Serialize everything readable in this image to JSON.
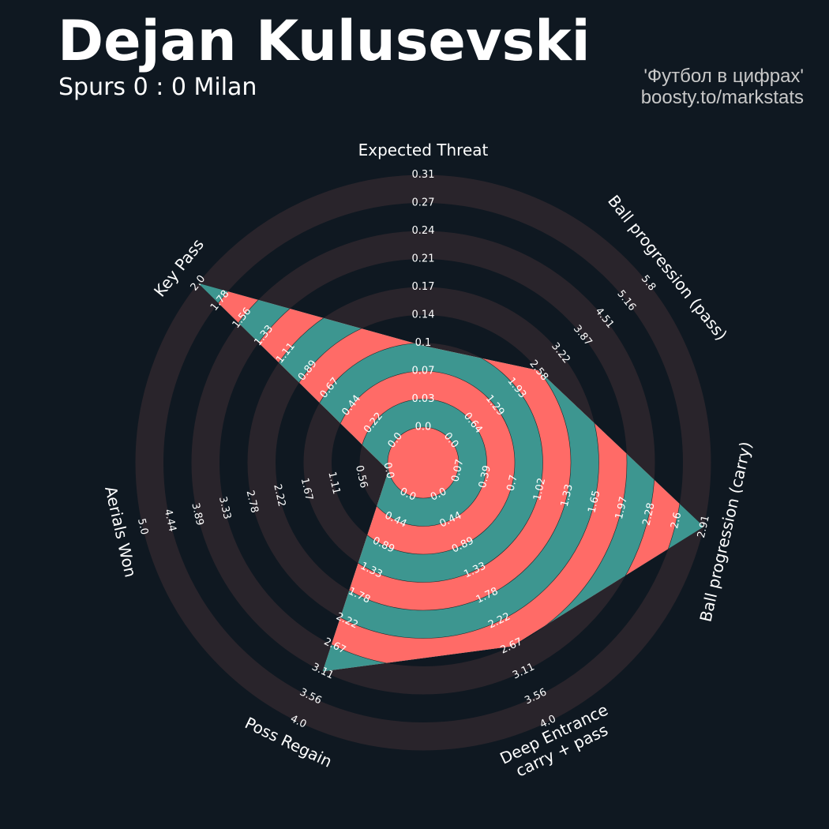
{
  "header": {
    "title": "Dejan Kulusevski",
    "subtitle": "Spurs 0 : 0 Milan",
    "credit_line1": "'Футбол в цифрах'",
    "credit_line2": "boosty.to/markstats"
  },
  "colors": {
    "background": "#0f1821",
    "rings": "#29242b",
    "stripe_a": "#ff6b67",
    "stripe_b": "#3d9690",
    "text": "#ffffff",
    "credit": "#c8c8c8"
  },
  "chart_data": {
    "type": "radar",
    "parameters": [
      {
        "name": [
          "Expected Threat"
        ],
        "ticks": [
          "0.0",
          "0.03",
          "0.07",
          "0.1",
          "0.14",
          "0.17",
          "0.21",
          "0.24",
          "0.27",
          "0.31"
        ],
        "value": 0.1
      },
      {
        "name": [
          "Ball progression (pass)"
        ],
        "ticks": [
          "0.0",
          "0.64",
          "1.29",
          "1.93",
          "2.58",
          "3.22",
          "3.87",
          "4.51",
          "5.16",
          "5.8"
        ],
        "value": 2.58
      },
      {
        "name": [
          "Ball progression (carry)"
        ],
        "ticks": [
          "0.07",
          "0.39",
          "0.7",
          "1.02",
          "1.33",
          "1.65",
          "1.97",
          "2.28",
          "2.6",
          "2.91"
        ],
        "value": 2.91
      },
      {
        "name": [
          "Deep Entrance",
          "carry + pass"
        ],
        "ticks": [
          "0.0",
          "0.44",
          "0.89",
          "1.33",
          "1.78",
          "2.22",
          "2.67",
          "3.11",
          "3.56",
          "4.0"
        ],
        "value": 2.67
      },
      {
        "name": [
          "Poss Regain"
        ],
        "ticks": [
          "0.0",
          "0.44",
          "0.89",
          "1.33",
          "1.78",
          "2.22",
          "2.67",
          "3.11",
          "3.56",
          "4.0"
        ],
        "value": 3.11
      },
      {
        "name": [
          "Aerials Won"
        ],
        "ticks": [
          "0.0",
          "0.56",
          "1.11",
          "1.67",
          "2.22",
          "2.78",
          "3.33",
          "3.89",
          "4.44",
          "5.0"
        ],
        "value": 0.0
      },
      {
        "name": [
          "Key Pass"
        ],
        "ticks": [
          "0.0",
          "0.22",
          "0.44",
          "0.67",
          "0.89",
          "1.11",
          "1.33",
          "1.56",
          "1.78",
          "2.0"
        ],
        "value": 2.0
      }
    ]
  }
}
